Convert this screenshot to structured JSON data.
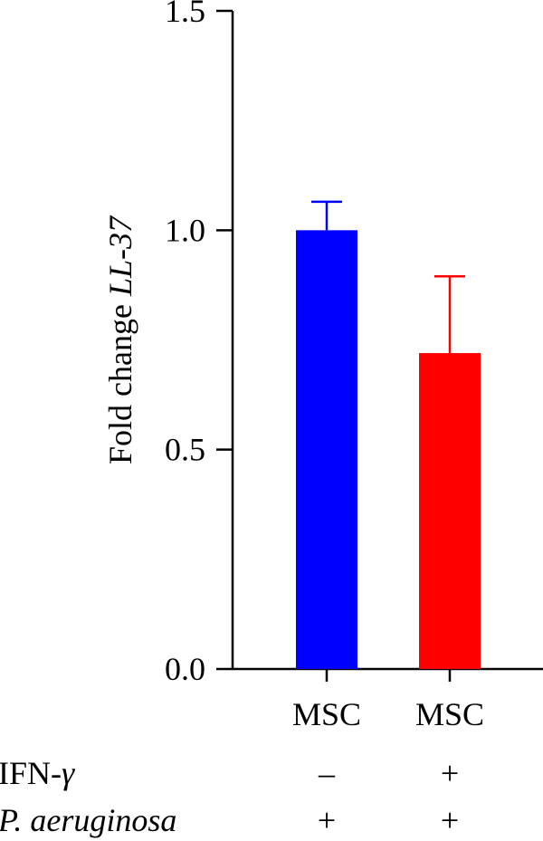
{
  "chart_data": {
    "type": "bar",
    "ylabel_prefix": "Fold change ",
    "ylabel_gene": "LL-37",
    "ylim": [
      0,
      1.5
    ],
    "yticks": [
      "0.0",
      "0.5",
      "1.0",
      "1.5"
    ],
    "categories": [
      "MSC",
      "MSC"
    ],
    "values": [
      1.0,
      0.72
    ],
    "errors": [
      0.065,
      0.175
    ],
    "colors": [
      "#0000ff",
      "#ff0000"
    ],
    "conditions": [
      {
        "label": "IFN-",
        "label_symbol": "γ",
        "marks": [
          "–",
          "+"
        ]
      },
      {
        "label": "P. aeruginosa",
        "italic": true,
        "marks": [
          "+",
          "+"
        ]
      }
    ],
    "grid": false
  }
}
